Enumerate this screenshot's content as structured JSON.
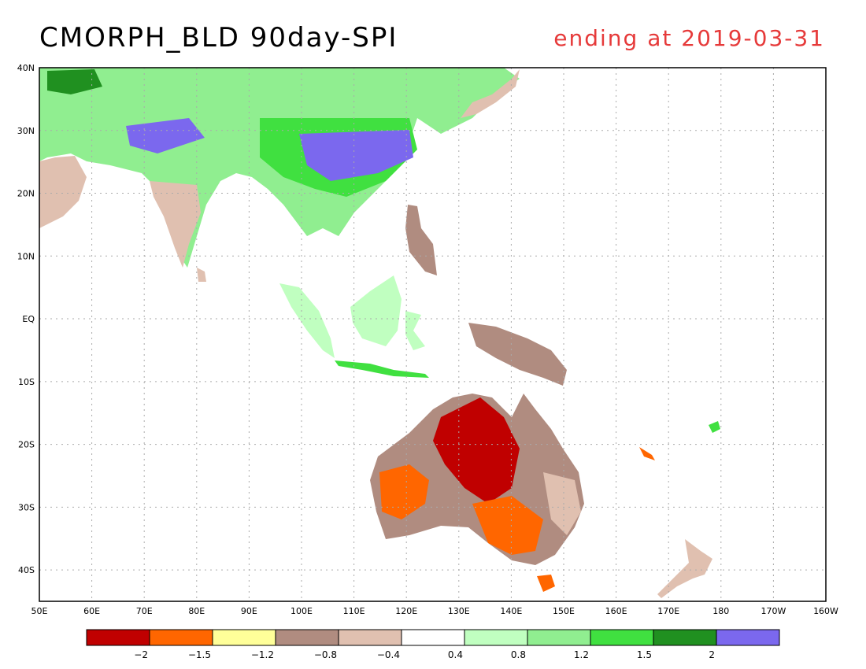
{
  "title": "CMORPH_BLD 90day-SPI",
  "subtitle": "ending at 2019-03-31",
  "subtitle_color": "#e63a3a",
  "map": {
    "lon_range": [
      50,
      200
    ],
    "lat_range": [
      -45,
      40
    ],
    "lon_ticks": [
      "50E",
      "60E",
      "70E",
      "80E",
      "90E",
      "100E",
      "110E",
      "120E",
      "130E",
      "140E",
      "150E",
      "160E",
      "170E",
      "180",
      "170W",
      "160W"
    ],
    "lat_ticks": [
      "40N",
      "30N",
      "20N",
      "10N",
      "EQ",
      "10S",
      "20S",
      "30S",
      "40S"
    ]
  },
  "colorbar": {
    "colors": [
      "#c00000",
      "#ff6600",
      "#ffff99",
      "#b08c80",
      "#e0c0b0",
      "#ffffff",
      "#c0ffc0",
      "#90ee90",
      "#40e040",
      "#209020",
      "#7b68ee"
    ],
    "labels": [
      "-2",
      "-1.5",
      "-1.2",
      "-0.8",
      "-0.4",
      "0.4",
      "0.8",
      "1.2",
      "1.5",
      "2"
    ]
  }
}
